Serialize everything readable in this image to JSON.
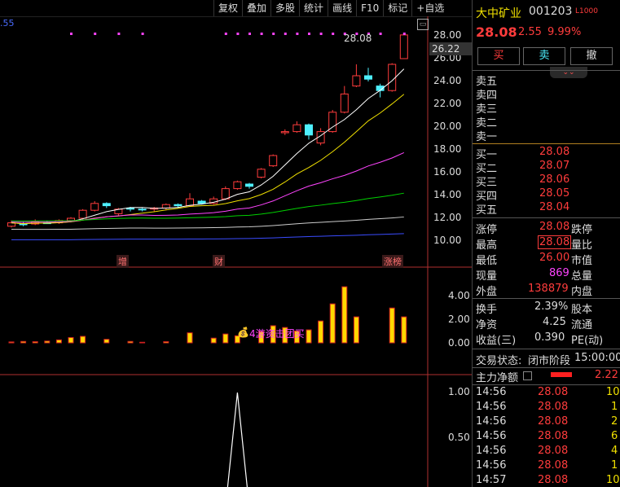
{
  "toolbar": {
    "items": [
      "复权",
      "叠加",
      "多股",
      "统计",
      "画线",
      "F10",
      "标记",
      "+自选"
    ]
  },
  "main_chart": {
    "top_left_value": ".55",
    "price_axis": [
      "28.00",
      "26.00",
      "24.00",
      "22.00",
      "20.00",
      "18.00",
      "16.00",
      "14.00",
      "12.00",
      "10.00"
    ],
    "high_marker_label": "28.08",
    "current_price_tag": "26.22",
    "event_labels": [
      "增",
      "财",
      "涨榜"
    ]
  },
  "volume_chart": {
    "axis": [
      "4.00",
      "2.00",
      "0.00"
    ],
    "annotation": "4游资击团买"
  },
  "indicator_chart": {
    "axis": [
      "1.00",
      "0.50"
    ]
  },
  "quote": {
    "name": "大中矿业",
    "code": "001203",
    "tag": "L1000",
    "price": "28.08",
    "change": "2.55",
    "change_pct": "9.99%"
  },
  "trade_buttons": {
    "buy": "买",
    "sell": "卖",
    "cancel": "撤"
  },
  "order_book": {
    "asks": [
      {
        "label": "卖五",
        "price": ""
      },
      {
        "label": "卖四",
        "price": ""
      },
      {
        "label": "卖三",
        "price": ""
      },
      {
        "label": "卖二",
        "price": ""
      },
      {
        "label": "卖一",
        "price": ""
      }
    ],
    "bids": [
      {
        "label": "买一",
        "price": "28.08"
      },
      {
        "label": "买二",
        "price": "28.07"
      },
      {
        "label": "买三",
        "price": "28.06"
      },
      {
        "label": "买四",
        "price": "28.05"
      },
      {
        "label": "买五",
        "price": "28.04"
      }
    ]
  },
  "stats": {
    "limit_up_label": "涨停",
    "limit_up": "28.08",
    "limit_down_label": "跌停",
    "high_label": "最高",
    "high": "28.08",
    "vol_ratio_label": "量比",
    "low_label": "最低",
    "low": "26.00",
    "mktcap_label": "市值",
    "now_vol_label": "现量",
    "now_vol": "869",
    "total_vol_label": "总量",
    "outer_label": "外盘",
    "outer": "138879",
    "inner_label": "内盘",
    "turnover_label": "换手",
    "turnover": "2.39%",
    "share_cap_label": "股本",
    "netasset_label": "净资",
    "netasset": "4.25",
    "float_label": "流通",
    "eps_label": "收益(三)",
    "eps": "0.390",
    "pe_label": "PE(动)"
  },
  "status": {
    "label": "交易状态:",
    "value": "闭市阶段",
    "time": "15:00:00"
  },
  "main_flow": {
    "label": "主力净额",
    "value": "2.22"
  },
  "ticks": [
    {
      "time": "14:56",
      "price": "28.08",
      "vol": "10"
    },
    {
      "time": "14:56",
      "price": "28.08",
      "vol": "1"
    },
    {
      "time": "14:56",
      "price": "28.08",
      "vol": "2"
    },
    {
      "time": "14:56",
      "price": "28.08",
      "vol": "6"
    },
    {
      "time": "14:56",
      "price": "28.08",
      "vol": "4"
    },
    {
      "time": "14:56",
      "price": "28.08",
      "vol": "1"
    },
    {
      "time": "14:57",
      "price": "28.08",
      "vol": "10"
    }
  ],
  "colors": {
    "up": "#ff3c3c",
    "down": "#4ef0ff",
    "ma5": "#ffffff",
    "ma10": "#f0e000",
    "ma20": "#ff44ff",
    "ma30": "#00d000",
    "ma60": "#cccccc",
    "ma120": "#3a4cff",
    "vol_bar": "#ffd800"
  },
  "candles": [
    {
      "o": 11.3,
      "c": 11.6,
      "h": 11.8,
      "l": 11.2
    },
    {
      "o": 11.5,
      "c": 11.45,
      "h": 11.7,
      "l": 11.3
    },
    {
      "o": 11.5,
      "c": 11.7,
      "h": 11.9,
      "l": 11.4
    },
    {
      "o": 11.6,
      "c": 11.55,
      "h": 11.8,
      "l": 11.5
    },
    {
      "o": 11.6,
      "c": 11.8,
      "h": 11.9,
      "l": 11.5
    },
    {
      "o": 11.8,
      "c": 12.0,
      "h": 12.1,
      "l": 11.7
    },
    {
      "o": 12.0,
      "c": 12.7,
      "h": 12.8,
      "l": 11.9
    },
    {
      "o": 12.7,
      "c": 13.3,
      "h": 13.5,
      "l": 12.6
    },
    {
      "o": 13.3,
      "c": 13.1,
      "h": 13.4,
      "l": 12.9
    },
    {
      "o": 12.4,
      "c": 12.8,
      "h": 12.9,
      "l": 12.2
    },
    {
      "o": 12.9,
      "c": 12.8,
      "h": 13.0,
      "l": 12.6
    },
    {
      "o": 12.8,
      "c": 12.75,
      "h": 12.9,
      "l": 12.6
    },
    {
      "o": 12.8,
      "c": 12.9,
      "h": 13.0,
      "l": 12.6
    },
    {
      "o": 12.9,
      "c": 13.2,
      "h": 13.3,
      "l": 12.7
    },
    {
      "o": 13.2,
      "c": 13.1,
      "h": 13.3,
      "l": 12.9
    },
    {
      "o": 13.1,
      "c": 13.7,
      "h": 14.2,
      "l": 13.0
    },
    {
      "o": 13.5,
      "c": 13.3,
      "h": 13.6,
      "l": 13.2
    },
    {
      "o": 13.3,
      "c": 13.7,
      "h": 13.9,
      "l": 13.2
    },
    {
      "o": 13.7,
      "c": 14.6,
      "h": 14.8,
      "l": 13.6
    },
    {
      "o": 14.6,
      "c": 15.2,
      "h": 15.3,
      "l": 14.5
    },
    {
      "o": 15.0,
      "c": 14.8,
      "h": 15.1,
      "l": 14.6
    },
    {
      "o": 15.6,
      "c": 16.3,
      "h": 16.4,
      "l": 15.5
    },
    {
      "o": 16.6,
      "c": 17.5,
      "h": 17.6,
      "l": 16.5
    },
    {
      "o": 19.5,
      "c": 19.6,
      "h": 19.8,
      "l": 19.3
    },
    {
      "o": 19.6,
      "c": 20.2,
      "h": 20.5,
      "l": 19.5
    },
    {
      "o": 20.2,
      "c": 19.3,
      "h": 20.3,
      "l": 18.9
    },
    {
      "o": 18.6,
      "c": 19.6,
      "h": 19.9,
      "l": 18.4
    },
    {
      "o": 19.6,
      "c": 21.3,
      "h": 21.5,
      "l": 19.5
    },
    {
      "o": 21.3,
      "c": 22.9,
      "h": 23.6,
      "l": 21.2
    },
    {
      "o": 23.6,
      "c": 24.5,
      "h": 25.5,
      "l": 23.5
    },
    {
      "o": 24.5,
      "c": 24.2,
      "h": 25.2,
      "l": 24.0
    },
    {
      "o": 23.6,
      "c": 23.2,
      "h": 23.8,
      "l": 22.6
    },
    {
      "o": 23.2,
      "c": 25.5,
      "h": 25.6,
      "l": 23.1
    },
    {
      "o": 26.0,
      "c": 28.08,
      "h": 28.08,
      "l": 26.0
    }
  ],
  "volumes": [
    0.08,
    0.12,
    0.1,
    0.15,
    0.25,
    0.45,
    0.55,
    0,
    0.3,
    0,
    0.12,
    0.05,
    0,
    0.1,
    0,
    0.85,
    0,
    0.4,
    0.75,
    0.6,
    0,
    0.95,
    1.45,
    1.3,
    1.0,
    1.1,
    1.85,
    3.3,
    4.75,
    2.2,
    0,
    0,
    2.95,
    2.2
  ],
  "indicator": {
    "spike_index": 19,
    "spike_value": 1.0
  }
}
